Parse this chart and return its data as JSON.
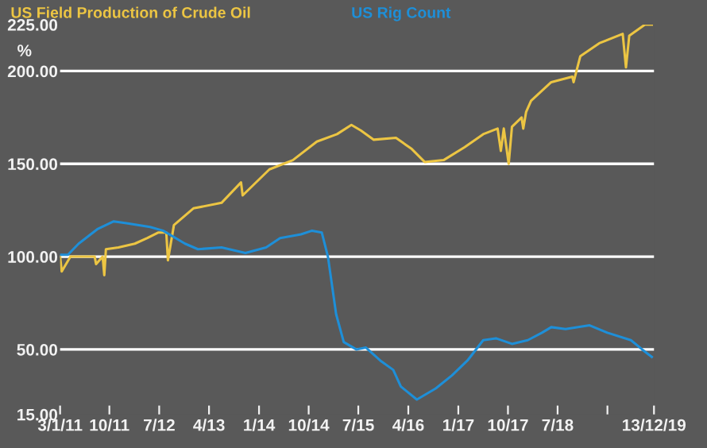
{
  "chart_data": {
    "type": "line",
    "ylabel": "%",
    "x": [
      "2011-01-03",
      "2011-01-12",
      "2011-03-01",
      "2011-07-12",
      "2011-07-20",
      "2011-08-25",
      "2011-09-03",
      "2011-09-12",
      "2011-11-20",
      "2012-02-18",
      "2012-04-27",
      "2012-06-27",
      "2012-08-09",
      "2012-08-18",
      "2012-09-20",
      "2013-01-05",
      "2013-06-09",
      "2013-09-24",
      "2013-10-03",
      "2014-02-27",
      "2014-07-06",
      "2014-11-15",
      "2015-03-06",
      "2015-05-24",
      "2015-07-15",
      "2015-09-24",
      "2016-01-24",
      "2016-04-20",
      "2016-06-30",
      "2016-10-12",
      "2017-02-05",
      "2017-05-18",
      "2017-08-05",
      "2017-08-23",
      "2017-09-08",
      "2017-10-05",
      "2017-10-23",
      "2017-12-15",
      "2017-12-24",
      "2018-01-09",
      "2018-02-05",
      "2018-05-27",
      "2018-09-20",
      "2018-09-27",
      "2018-11-03",
      "2019-02-15",
      "2019-06-24",
      "2019-07-12",
      "2019-07-30",
      "2019-10-24",
      "2019-12-01"
    ],
    "series": [
      {
        "name": "US Field Production of Crude Oil",
        "color": "#ecc543",
        "values": [
          100,
          92,
          100,
          100,
          96,
          100,
          90,
          104,
          105,
          107,
          110,
          113,
          113,
          98,
          117,
          126,
          129,
          140,
          133,
          147,
          152,
          162,
          166,
          171,
          168,
          163,
          164,
          158,
          151,
          152,
          159,
          166,
          169,
          157,
          169,
          150,
          170,
          175,
          169,
          178,
          184,
          194,
          197,
          194,
          208,
          215,
          220,
          202,
          219,
          225,
          225
        ]
      },
      {
        "name": "US Rig Count",
        "color": "#1e8fd8",
        "x": [
          "2011-01-03",
          "2011-02-15",
          "2011-04-15",
          "2011-07-30",
          "2011-10-25",
          "2012-01-03",
          "2012-05-12",
          "2012-07-22",
          "2012-11-20",
          "2013-01-30",
          "2013-06-09",
          "2013-10-18",
          "2014-02-09",
          "2014-04-27",
          "2014-08-20",
          "2014-10-20",
          "2014-12-12",
          "2015-01-15",
          "2015-03-01",
          "2015-04-12",
          "2015-06-20",
          "2015-08-12",
          "2015-10-30",
          "2016-01-09",
          "2016-02-20",
          "2016-05-18",
          "2016-08-30",
          "2016-11-27",
          "2017-02-20",
          "2017-05-18",
          "2017-07-27",
          "2017-10-23",
          "2018-01-18",
          "2018-04-06",
          "2018-05-27",
          "2018-08-14",
          "2018-12-24",
          "2019-04-01",
          "2019-08-08",
          "2019-10-09",
          "2019-12-01"
        ],
        "values": [
          101,
          101,
          107,
          115,
          119,
          118,
          116,
          114,
          107,
          104,
          105,
          102,
          105,
          110,
          112,
          114,
          113,
          100,
          69,
          54,
          50,
          51,
          44,
          39,
          30,
          23,
          29,
          36,
          44,
          55,
          56,
          53,
          55,
          59,
          62,
          61,
          63,
          59,
          55,
          50,
          46
        ]
      }
    ],
    "xlim": [
      "2011-01-03",
      "2019-12-13"
    ],
    "xticks": [
      {
        "value": "2011-01-03",
        "label": "3/1/11"
      },
      {
        "value": "2011-10-01",
        "label": "10/11"
      },
      {
        "value": "2012-07-01",
        "label": "7/12"
      },
      {
        "value": "2013-04-01",
        "label": "4/13"
      },
      {
        "value": "2014-01-01",
        "label": "1/14"
      },
      {
        "value": "2014-10-01",
        "label": "10/14"
      },
      {
        "value": "2015-07-01",
        "label": "7/15"
      },
      {
        "value": "2016-04-01",
        "label": "4/16"
      },
      {
        "value": "2017-01-01",
        "label": "1/17"
      },
      {
        "value": "2017-10-01",
        "label": "10/17"
      },
      {
        "value": "2018-07-01",
        "label": "7/18"
      },
      {
        "value": "2019-04-01",
        "label": null
      },
      {
        "value": "2019-12-13",
        "label": "13/12/19"
      }
    ],
    "ylim": [
      15,
      225
    ],
    "yticks": [
      {
        "value": 15,
        "label": "15.00"
      },
      {
        "value": 50,
        "label": "50.00"
      },
      {
        "value": 100,
        "label": "100.00"
      },
      {
        "value": 150,
        "label": "150.00"
      },
      {
        "value": 200,
        "label": "200.00"
      },
      {
        "value": 225,
        "label": "225.00"
      }
    ],
    "grid": "y",
    "legend": "top left",
    "marker": "none",
    "line_style": "solid"
  }
}
